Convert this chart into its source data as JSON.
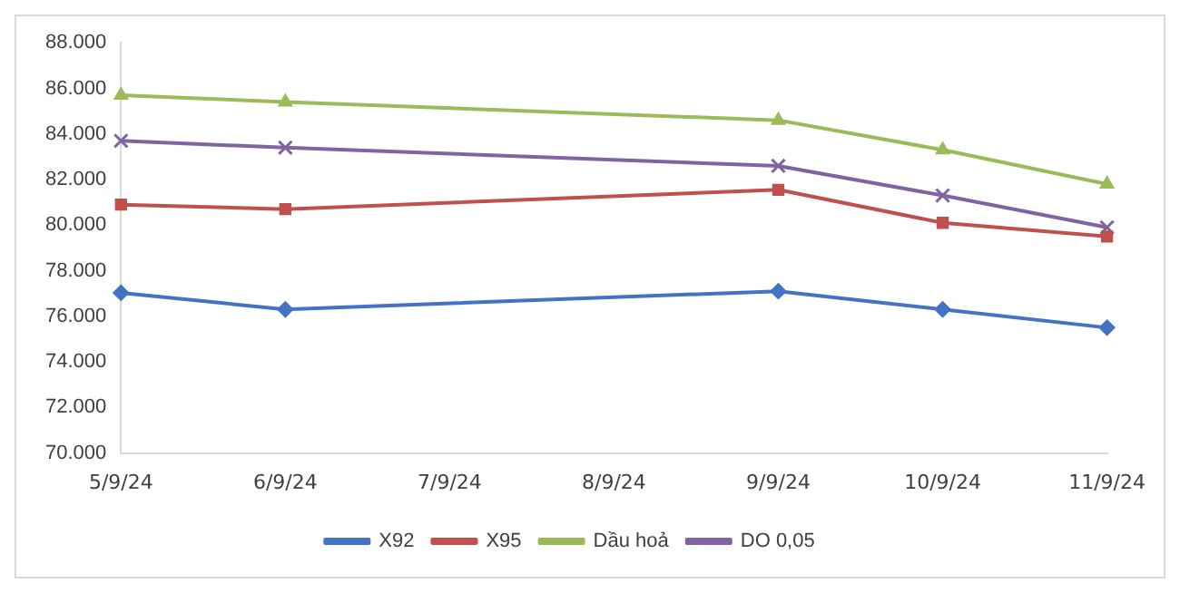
{
  "chart_data": {
    "type": "line",
    "categories": [
      "5/9/24",
      "6/9/24",
      "7/9/24",
      "8/9/24",
      "9/9/24",
      "10/9/24",
      "11/9/24"
    ],
    "series": [
      {
        "name": "X92",
        "color": "#4472c4",
        "marker": "diamond",
        "values": [
          77030,
          76300,
          null,
          null,
          77100,
          76300,
          75500
        ]
      },
      {
        "name": "X95",
        "color": "#c0504d",
        "marker": "square",
        "values": [
          80900,
          80700,
          null,
          null,
          81550,
          80100,
          79500
        ]
      },
      {
        "name": "Dầu hoả",
        "color": "#9bbb59",
        "marker": "triangle",
        "values": [
          85700,
          85400,
          null,
          null,
          84600,
          83300,
          81800
        ]
      },
      {
        "name": "DO 0,05",
        "color": "#8064a2",
        "marker": "cross",
        "values": [
          83700,
          83400,
          null,
          null,
          82600,
          81300,
          79900
        ]
      }
    ],
    "ylim": [
      70000,
      88000
    ],
    "yticks": [
      {
        "value": 70000,
        "label": "70.000"
      },
      {
        "value": 72000,
        "label": "72.000"
      },
      {
        "value": 74000,
        "label": "74.000"
      },
      {
        "value": 76000,
        "label": "76.000"
      },
      {
        "value": 78000,
        "label": "78.000"
      },
      {
        "value": 80000,
        "label": "80.000"
      },
      {
        "value": 82000,
        "label": "82.000"
      },
      {
        "value": 84000,
        "label": "84.000"
      },
      {
        "value": 86000,
        "label": "86.000"
      },
      {
        "value": 88000,
        "label": "88.000"
      }
    ],
    "grid": false,
    "legend": "bottom"
  }
}
